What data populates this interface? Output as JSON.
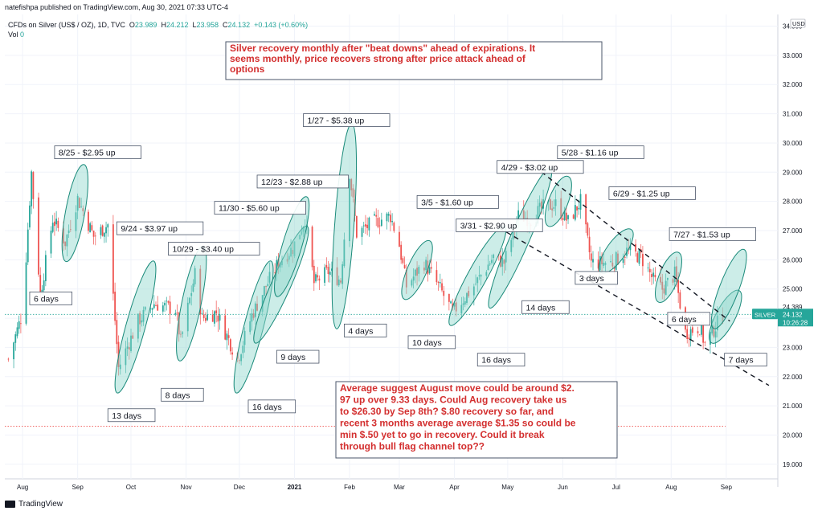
{
  "header": {
    "published": "natefishpa published on TradingView.com, Aug 30, 2021 07:33 UTC-4",
    "symbol": "CFDs on Silver (US$ / OZ), 1D, TVC",
    "o_label": "O",
    "o": "23.989",
    "h_label": "H",
    "h": "24.212",
    "l_label": "L",
    "l": "23.958",
    "c_label": "C",
    "c": "24.132",
    "change": "+0.143 (+0.60%)",
    "vol_label": "Vol",
    "vol": "0"
  },
  "axis": {
    "currency": "USD",
    "price_ticks": [
      "34.000",
      "33.000",
      "32.000",
      "31.000",
      "30.000",
      "29.000",
      "28.000",
      "27.000",
      "26.000",
      "25.000",
      "24.000",
      "23.000",
      "22.000",
      "21.000",
      "20.000",
      "19.000"
    ],
    "x_ticks": [
      "Aug",
      "Sep",
      "Oct",
      "Nov",
      "Dec",
      "2021",
      "Feb",
      "Mar",
      "Apr",
      "May",
      "Jun",
      "Jul",
      "Aug",
      "Sep"
    ],
    "last_label_value": "24.389",
    "badge_symbol": "SILVER",
    "badge_price": "24.132",
    "badge_time": "10:26:28"
  },
  "colors": {
    "up": "#26a69a",
    "down": "#ef5350",
    "ellipse_fill": "#8ed7cc",
    "ellipse_stroke": "#1a8a7a",
    "note_text": "#d32f2f",
    "box_border": "#4a5568",
    "grid": "#f0f3fa"
  },
  "chart_data": {
    "type": "candlestick",
    "title": "CFDs on Silver (US$ / OZ), 1D, TVC",
    "y_range": [
      18.5,
      34.4
    ],
    "date_range": [
      "2020-07-22",
      "2021-09-30"
    ],
    "price_path": [
      {
        "date": "2020-07-24",
        "price": 22.6
      },
      {
        "date": "2020-08-01",
        "price": 24.2
      },
      {
        "date": "2020-08-06",
        "price": 29.0
      },
      {
        "date": "2020-08-11",
        "price": 24.8
      },
      {
        "date": "2020-08-18",
        "price": 27.4
      },
      {
        "date": "2020-08-25",
        "price": 26.6
      },
      {
        "date": "2020-09-01",
        "price": 28.1
      },
      {
        "date": "2020-09-10",
        "price": 26.8
      },
      {
        "date": "2020-09-18",
        "price": 27.2
      },
      {
        "date": "2020-09-24",
        "price": 22.3
      },
      {
        "date": "2020-10-05",
        "price": 23.9
      },
      {
        "date": "2020-10-14",
        "price": 24.5
      },
      {
        "date": "2020-10-26",
        "price": 24.3
      },
      {
        "date": "2020-10-29",
        "price": 23.2
      },
      {
        "date": "2020-11-06",
        "price": 25.5
      },
      {
        "date": "2020-11-10",
        "price": 24.0
      },
      {
        "date": "2020-11-18",
        "price": 24.2
      },
      {
        "date": "2020-11-30",
        "price": 22.6
      },
      {
        "date": "2020-12-08",
        "price": 24.1
      },
      {
        "date": "2020-12-16",
        "price": 25.1
      },
      {
        "date": "2020-12-23",
        "price": 25.9
      },
      {
        "date": "2020-12-31",
        "price": 26.4
      },
      {
        "date": "2021-01-07",
        "price": 27.4
      },
      {
        "date": "2021-01-12",
        "price": 25.2
      },
      {
        "date": "2021-01-20",
        "price": 25.6
      },
      {
        "date": "2021-01-27",
        "price": 25.3
      },
      {
        "date": "2021-02-01",
        "price": 29.0
      },
      {
        "date": "2021-02-05",
        "price": 26.9
      },
      {
        "date": "2021-02-15",
        "price": 27.3
      },
      {
        "date": "2021-02-24",
        "price": 27.5
      },
      {
        "date": "2021-03-01",
        "price": 26.5
      },
      {
        "date": "2021-03-05",
        "price": 25.1
      },
      {
        "date": "2021-03-15",
        "price": 25.9
      },
      {
        "date": "2021-03-24",
        "price": 25.0
      },
      {
        "date": "2021-03-31",
        "price": 24.2
      },
      {
        "date": "2021-04-12",
        "price": 25.1
      },
      {
        "date": "2021-04-23",
        "price": 26.1
      },
      {
        "date": "2021-04-29",
        "price": 25.9
      },
      {
        "date": "2021-05-07",
        "price": 27.5
      },
      {
        "date": "2021-05-14",
        "price": 27.4
      },
      {
        "date": "2021-05-21",
        "price": 27.8
      },
      {
        "date": "2021-05-28",
        "price": 27.9
      },
      {
        "date": "2021-06-04",
        "price": 27.3
      },
      {
        "date": "2021-06-11",
        "price": 28.0
      },
      {
        "date": "2021-06-17",
        "price": 25.9
      },
      {
        "date": "2021-06-29",
        "price": 25.9
      },
      {
        "date": "2021-07-07",
        "price": 26.3
      },
      {
        "date": "2021-07-15",
        "price": 26.1
      },
      {
        "date": "2021-07-22",
        "price": 25.3
      },
      {
        "date": "2021-07-27",
        "price": 25.0
      },
      {
        "date": "2021-08-03",
        "price": 25.5
      },
      {
        "date": "2021-08-09",
        "price": 23.5
      },
      {
        "date": "2021-08-17",
        "price": 23.7
      },
      {
        "date": "2021-08-20",
        "price": 23.1
      },
      {
        "date": "2021-08-30",
        "price": 24.13
      }
    ],
    "recovery_ellipses": [
      {
        "start": "2020-08-26",
        "end": "2020-09-04",
        "low": 26.1,
        "high": 29.1
      },
      {
        "start": "2020-09-24",
        "end": "2020-10-13",
        "low": 21.6,
        "high": 25.8
      },
      {
        "start": "2020-10-29",
        "end": "2020-11-10",
        "low": 22.7,
        "high": 26.3
      },
      {
        "start": "2020-11-30",
        "end": "2020-12-18",
        "low": 21.6,
        "high": 25.8
      },
      {
        "start": "2020-12-11",
        "end": "2021-01-07",
        "low": 23.3,
        "high": 27.0
      },
      {
        "start": "2020-12-23",
        "end": "2021-01-07",
        "low": 24.9,
        "high": 28.0
      },
      {
        "start": "2021-01-25",
        "end": "2021-02-02",
        "low": 23.8,
        "high": 30.5
      },
      {
        "start": "2021-03-05",
        "end": "2021-03-17",
        "low": 24.8,
        "high": 26.5
      },
      {
        "start": "2021-03-31",
        "end": "2021-04-28",
        "low": 23.9,
        "high": 27.0
      },
      {
        "start": "2021-04-22",
        "end": "2021-05-24",
        "low": 24.5,
        "high": 29.0
      },
      {
        "start": "2021-05-25",
        "end": "2021-06-03",
        "low": 27.3,
        "high": 28.7
      },
      {
        "start": "2021-06-24",
        "end": "2021-07-08",
        "low": 25.7,
        "high": 26.9
      },
      {
        "start": "2021-07-26",
        "end": "2021-08-04",
        "low": 24.7,
        "high": 26.1
      },
      {
        "start": "2021-08-25",
        "end": "2021-09-07",
        "low": 23.3,
        "high": 24.8
      },
      {
        "start": "2021-08-26",
        "end": "2021-09-10",
        "low": 23.8,
        "high": 26.2
      }
    ],
    "channel_lines": [
      {
        "from": {
          "date": "2021-05-16",
          "price": 29.2
        },
        "to": {
          "date": "2021-09-03",
          "price": 23.9
        }
      },
      {
        "from": {
          "date": "2021-04-26",
          "price": 27.1
        },
        "to": {
          "date": "2021-09-25",
          "price": 21.7
        }
      }
    ],
    "reference_lines": [
      {
        "price": 24.13,
        "style": "dotted",
        "color": "#26a69a"
      },
      {
        "price": 20.3,
        "style": "dotted",
        "color": "#ef5350"
      }
    ],
    "annotations": [
      {
        "text": "8/25 - $2.95 up",
        "date": "2020-08-19",
        "price": 29.9
      },
      {
        "text": "9/24 - $3.97 up",
        "date": "2020-09-23",
        "price": 27.3
      },
      {
        "text": "10/29 - $3.40 up",
        "date": "2020-10-22",
        "price": 26.6
      },
      {
        "text": "11/30 - $5.60 up",
        "date": "2020-11-17",
        "price": 28.0
      },
      {
        "text": "12/23 - $2.88 up",
        "date": "2020-12-11",
        "price": 28.9
      },
      {
        "text": "1/27 - $5.38 up",
        "date": "2021-01-06",
        "price": 31.0
      },
      {
        "text": "3/5 - $1.60 up",
        "date": "2021-03-11",
        "price": 28.2
      },
      {
        "text": "3/31 - $2.90 up",
        "date": "2021-04-02",
        "price": 27.4
      },
      {
        "text": "4/29 - $3.02 up",
        "date": "2021-04-25",
        "price": 29.4
      },
      {
        "text": "5/28 - $1.16 up",
        "date": "2021-05-29",
        "price": 29.9
      },
      {
        "text": "6/29 - $1.25 up",
        "date": "2021-06-27",
        "price": 28.5
      },
      {
        "text": "7/27 - $1.53 up",
        "date": "2021-07-31",
        "price": 27.1
      },
      {
        "text": "6 days",
        "date": "2020-08-05",
        "price": 24.9
      },
      {
        "text": "13 days",
        "date": "2020-09-18",
        "price": 20.9
      },
      {
        "text": "8 days",
        "date": "2020-10-18",
        "price": 21.6
      },
      {
        "text": "16 days",
        "date": "2020-12-06",
        "price": 21.2
      },
      {
        "text": "9 days",
        "date": "2020-12-22",
        "price": 22.9
      },
      {
        "text": "4 days",
        "date": "2021-01-29",
        "price": 23.8
      },
      {
        "text": "10 days",
        "date": "2021-03-06",
        "price": 23.4
      },
      {
        "text": "16 days",
        "date": "2021-04-14",
        "price": 22.8
      },
      {
        "text": "14 days",
        "date": "2021-05-09",
        "price": 24.6
      },
      {
        "text": "3 days",
        "date": "2021-06-08",
        "price": 25.6
      },
      {
        "text": "6 days",
        "date": "2021-07-30",
        "price": 24.2
      },
      {
        "text": "7 days",
        "date": "2021-08-31",
        "price": 22.8
      }
    ],
    "notes": [
      {
        "lines": [
          "Silver recovery monthly after \"beat downs\" ahead of expirations.  It",
          "seems monthly, price recovers strong after price attack ahead of",
          "options"
        ]
      },
      {
        "lines": [
          "Average suggest August move could be around $2.",
          "97 up over 9.33 days.  Could Aug recovery take us",
          "to $26.30 by Sep 8th?  $.80 recovery so far, and",
          "recent 3 months average average $1.35 so could be",
          "min $.50 yet to go in recovery. Could it break",
          "through bull flag channel top??"
        ]
      }
    ]
  },
  "footer": {
    "logo": "TradingView"
  }
}
